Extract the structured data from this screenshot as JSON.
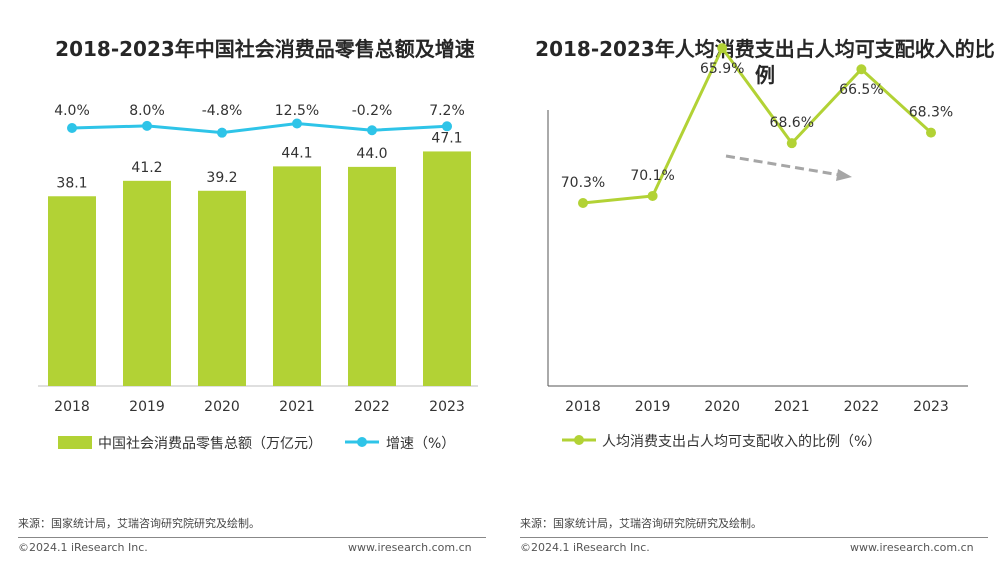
{
  "left": {
    "title": "2018-2023年中国社会消费品零售总额及增速",
    "chart_data": {
      "type": "bar",
      "categories": [
        "2018",
        "2019",
        "2020",
        "2021",
        "2022",
        "2023"
      ],
      "series": [
        {
          "name": "中国社会消费品零售总额（万亿元）",
          "type": "bar",
          "values": [
            38.1,
            41.2,
            39.2,
            44.1,
            44.0,
            47.1
          ],
          "color": "#b2d235"
        },
        {
          "name": "增速（%）",
          "type": "line",
          "values": [
            4.0,
            8.0,
            -4.8,
            12.5,
            -0.2,
            7.2
          ],
          "labels": [
            "4.0%",
            "8.0%",
            "-4.8%",
            "12.5%",
            "-0.2%",
            "7.2%"
          ],
          "color": "#2ec4e8"
        }
      ],
      "bar_labels": [
        "38.1",
        "41.2",
        "39.2",
        "44.1",
        "44.0",
        "47.1"
      ]
    },
    "legend": [
      "中国社会消费品零售总额（万亿元）",
      "增速（%）"
    ],
    "source": "来源：国家统计局，艾瑞咨询研究院研究及绘制。",
    "copyright": "©2024.1 iResearch Inc.",
    "website": "www.iresearch.com.cn"
  },
  "right": {
    "title": "2018-2023年人均消费支出占人均可支配收入的比例",
    "chart_data": {
      "type": "line",
      "categories": [
        "2018",
        "2019",
        "2020",
        "2021",
        "2022",
        "2023"
      ],
      "series": [
        {
          "name": "人均消费支出占人均可支配收入的比例（%）",
          "values": [
            70.3,
            70.1,
            65.9,
            68.6,
            66.5,
            68.3
          ],
          "labels": [
            "70.3%",
            "70.1%",
            "65.9%",
            "68.6%",
            "66.5%",
            "68.3%"
          ],
          "color": "#b2d235"
        }
      ],
      "annotation": "downward trend arrow"
    },
    "legend": [
      "人均消费支出占人均可支配收入的比例（%）"
    ],
    "source": "来源：国家统计局，艾瑞咨询研究院研究及绘制。",
    "copyright": "©2024.1 iResearch Inc.",
    "website": "www.iresearch.com.cn"
  }
}
